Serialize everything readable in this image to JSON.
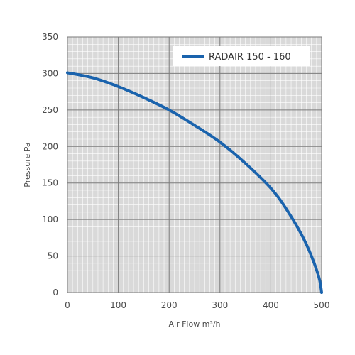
{
  "chart_data": {
    "type": "line",
    "xlabel": "Air Flow m³/h",
    "ylabel": "Pressure Pa",
    "xlim": [
      0,
      500
    ],
    "ylim": [
      0,
      350
    ],
    "x_ticks": [
      0,
      100,
      200,
      300,
      400,
      500
    ],
    "y_ticks": [
      0,
      50,
      100,
      150,
      200,
      250,
      300,
      350
    ],
    "x_tick_labels": [
      "0",
      "100",
      "200",
      "300",
      "400",
      "500"
    ],
    "y_tick_labels": [
      "0",
      "50",
      "100",
      "150",
      "200",
      "250",
      "300",
      "350"
    ],
    "grid": true,
    "minor_grid": true,
    "legend_position": "top-right",
    "series": [
      {
        "name": "RADAIR 150 - 160",
        "color": "#1a63ad",
        "x": [
          0,
          50,
          100,
          150,
          200,
          250,
          300,
          350,
          400,
          430,
          460,
          480,
          495,
          500
        ],
        "y": [
          301,
          294,
          282,
          267,
          250,
          229,
          206,
          177,
          143,
          115,
          80,
          50,
          20,
          0
        ]
      }
    ]
  }
}
